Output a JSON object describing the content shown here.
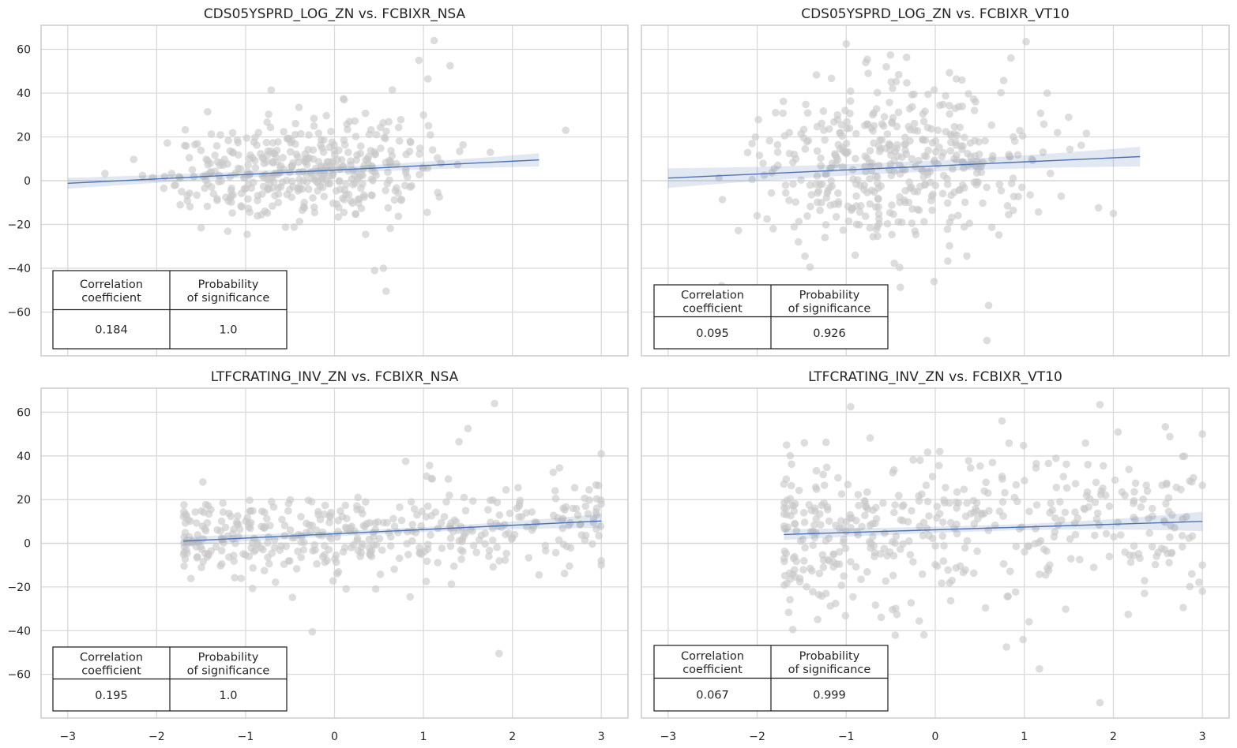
{
  "chart_data": [
    {
      "type": "scatter",
      "title": "CDS05YSPRD_LOG_ZN vs. FCBIXR_NSA",
      "xlabel": "",
      "ylabel": "",
      "xlim": [
        -3.3,
        3.3
      ],
      "ylim": [
        -80,
        71
      ],
      "xticks": [
        -3,
        -2,
        -1,
        0,
        1,
        2,
        3
      ],
      "yticks": [
        -60,
        -40,
        -20,
        0,
        20,
        40,
        60
      ],
      "grid": true,
      "point_color": "#c8c8c8",
      "line_color": "#4c72b0",
      "regression": {
        "x": [
          -3.0,
          2.3
        ],
        "y": [
          -1.2,
          9.5
        ],
        "ci": [
          2.5,
          3.0
        ]
      },
      "point_gen": {
        "n": 420,
        "seed": 11,
        "xmin": -3.0,
        "xmax": 2.3,
        "xmode": "uniform",
        "slope": 2.0,
        "intercept": 4.8,
        "sd": 11,
        "ymin": -52,
        "ymax": 65
      },
      "points": [
        [
          1.12,
          64
        ],
        [
          0.95,
          55
        ],
        [
          1.05,
          46.5
        ],
        [
          1.3,
          52.5
        ],
        [
          0.65,
          41.5
        ],
        [
          1.0,
          30
        ],
        [
          -0.4,
          33.5
        ],
        [
          0.1,
          37.5
        ],
        [
          0.55,
          -40
        ],
        [
          0.45,
          -41
        ],
        [
          0.58,
          -50.5
        ],
        [
          -1.5,
          -21.5
        ],
        [
          0.35,
          -24.5
        ],
        [
          2.6,
          23
        ]
      ],
      "stats_table": {
        "headers": [
          "Correlation\ncoefficient",
          "Probability\nof significance"
        ],
        "values": [
          "0.184",
          "1.0"
        ]
      }
    },
    {
      "type": "scatter",
      "title": "CDS05YSPRD_LOG_ZN vs. FCBIXR_VT10",
      "xlabel": "",
      "ylabel": "",
      "xlim": [
        -3.3,
        3.3
      ],
      "ylim": [
        -80,
        71
      ],
      "xticks": [
        -3,
        -2,
        -1,
        0,
        1,
        2,
        3
      ],
      "yticks": [
        -60,
        -40,
        -20,
        0,
        20,
        40,
        60
      ],
      "grid": true,
      "point_color": "#c8c8c8",
      "line_color": "#4c72b0",
      "regression": {
        "x": [
          -3.0,
          2.3
        ],
        "y": [
          1.2,
          11.0
        ],
        "ci": [
          4.5,
          4.5
        ]
      },
      "point_gen": {
        "n": 440,
        "seed": 23,
        "xmin": -3.0,
        "xmax": 2.3,
        "xmode": "uniform",
        "slope": 1.8,
        "intercept": 6.5,
        "sd": 19,
        "ymin": -55,
        "ymax": 64
      },
      "points": [
        [
          -1.0,
          62.5
        ],
        [
          1.02,
          63.5
        ],
        [
          0.85,
          56
        ],
        [
          -0.55,
          52
        ],
        [
          0.58,
          -73
        ],
        [
          0.6,
          -57
        ],
        [
          -2.4,
          -48
        ],
        [
          -2.0,
          -16
        ],
        [
          2.0,
          -15
        ]
      ],
      "stats_table": {
        "headers": [
          "Correlation\ncoefficient",
          "Probability\nof significance"
        ],
        "values": [
          "0.095",
          "0.926"
        ]
      }
    },
    {
      "type": "scatter",
      "title": "LTFCRATING_INV_ZN vs. FCBIXR_NSA",
      "xlabel": "",
      "ylabel": "",
      "xlim": [
        -3.3,
        3.3
      ],
      "ylim": [
        -80,
        71
      ],
      "xticks": [
        -3,
        -2,
        -1,
        0,
        1,
        2,
        3
      ],
      "yticks": [
        -60,
        -40,
        -20,
        0,
        20,
        40,
        60
      ],
      "grid": true,
      "point_color": "#c8c8c8",
      "line_color": "#4c72b0",
      "regression": {
        "x": [
          -1.7,
          3.0
        ],
        "y": [
          1.0,
          10.2
        ],
        "ci": [
          2.0,
          3.2
        ]
      },
      "point_gen": {
        "n": 420,
        "seed": 37,
        "xmin": -1.7,
        "xmax": 3.0,
        "xmode": "skew",
        "slope": 2.0,
        "intercept": 4.4,
        "sd": 9.5,
        "ymin": -42,
        "ymax": 64
      },
      "points": [
        [
          1.8,
          64
        ],
        [
          1.5,
          52.5
        ],
        [
          1.4,
          46.5
        ],
        [
          0.8,
          37.5
        ],
        [
          1.1,
          29.5
        ],
        [
          1.85,
          -50.5
        ],
        [
          -0.25,
          -40.5
        ],
        [
          0.85,
          -24.5
        ],
        [
          3.0,
          41
        ],
        [
          3.0,
          -8
        ],
        [
          3.0,
          -10
        ],
        [
          3.0,
          18
        ],
        [
          2.3,
          -14.5
        ]
      ],
      "stats_table": {
        "headers": [
          "Correlation\ncoefficient",
          "Probability\nof significance"
        ],
        "values": [
          "0.195",
          "1.0"
        ]
      }
    },
    {
      "type": "scatter",
      "title": "LTFCRATING_INV_ZN vs. FCBIXR_VT10",
      "xlabel": "",
      "ylabel": "",
      "xlim": [
        -3.3,
        3.3
      ],
      "ylim": [
        -80,
        71
      ],
      "xticks": [
        -3,
        -2,
        -1,
        0,
        1,
        2,
        3
      ],
      "yticks": [
        -60,
        -40,
        -20,
        0,
        20,
        40,
        60
      ],
      "grid": true,
      "point_color": "#c8c8c8",
      "line_color": "#4c72b0",
      "regression": {
        "x": [
          -1.7,
          3.0
        ],
        "y": [
          4.0,
          10.0
        ],
        "ci": [
          2.5,
          4.5
        ]
      },
      "point_gen": {
        "n": 430,
        "seed": 53,
        "xmin": -1.7,
        "xmax": 3.0,
        "xmode": "skew",
        "slope": 1.3,
        "intercept": 6.3,
        "sd": 18,
        "ymin": -48,
        "ymax": 62
      },
      "points": [
        [
          1.85,
          63.5
        ],
        [
          -0.95,
          62.5
        ],
        [
          0.75,
          56
        ],
        [
          1.85,
          -73
        ],
        [
          1.17,
          -57.5
        ],
        [
          0.8,
          -47.5
        ],
        [
          -1.6,
          -39.5
        ],
        [
          3.0,
          50
        ],
        [
          3.0,
          -22
        ],
        [
          3.0,
          -10
        ],
        [
          3.0,
          26.5
        ],
        [
          2.9,
          30
        ]
      ],
      "stats_table": {
        "headers": [
          "Correlation\ncoefficient",
          "Probability\nof significance"
        ],
        "values": [
          "0.067",
          "0.999"
        ]
      }
    }
  ]
}
